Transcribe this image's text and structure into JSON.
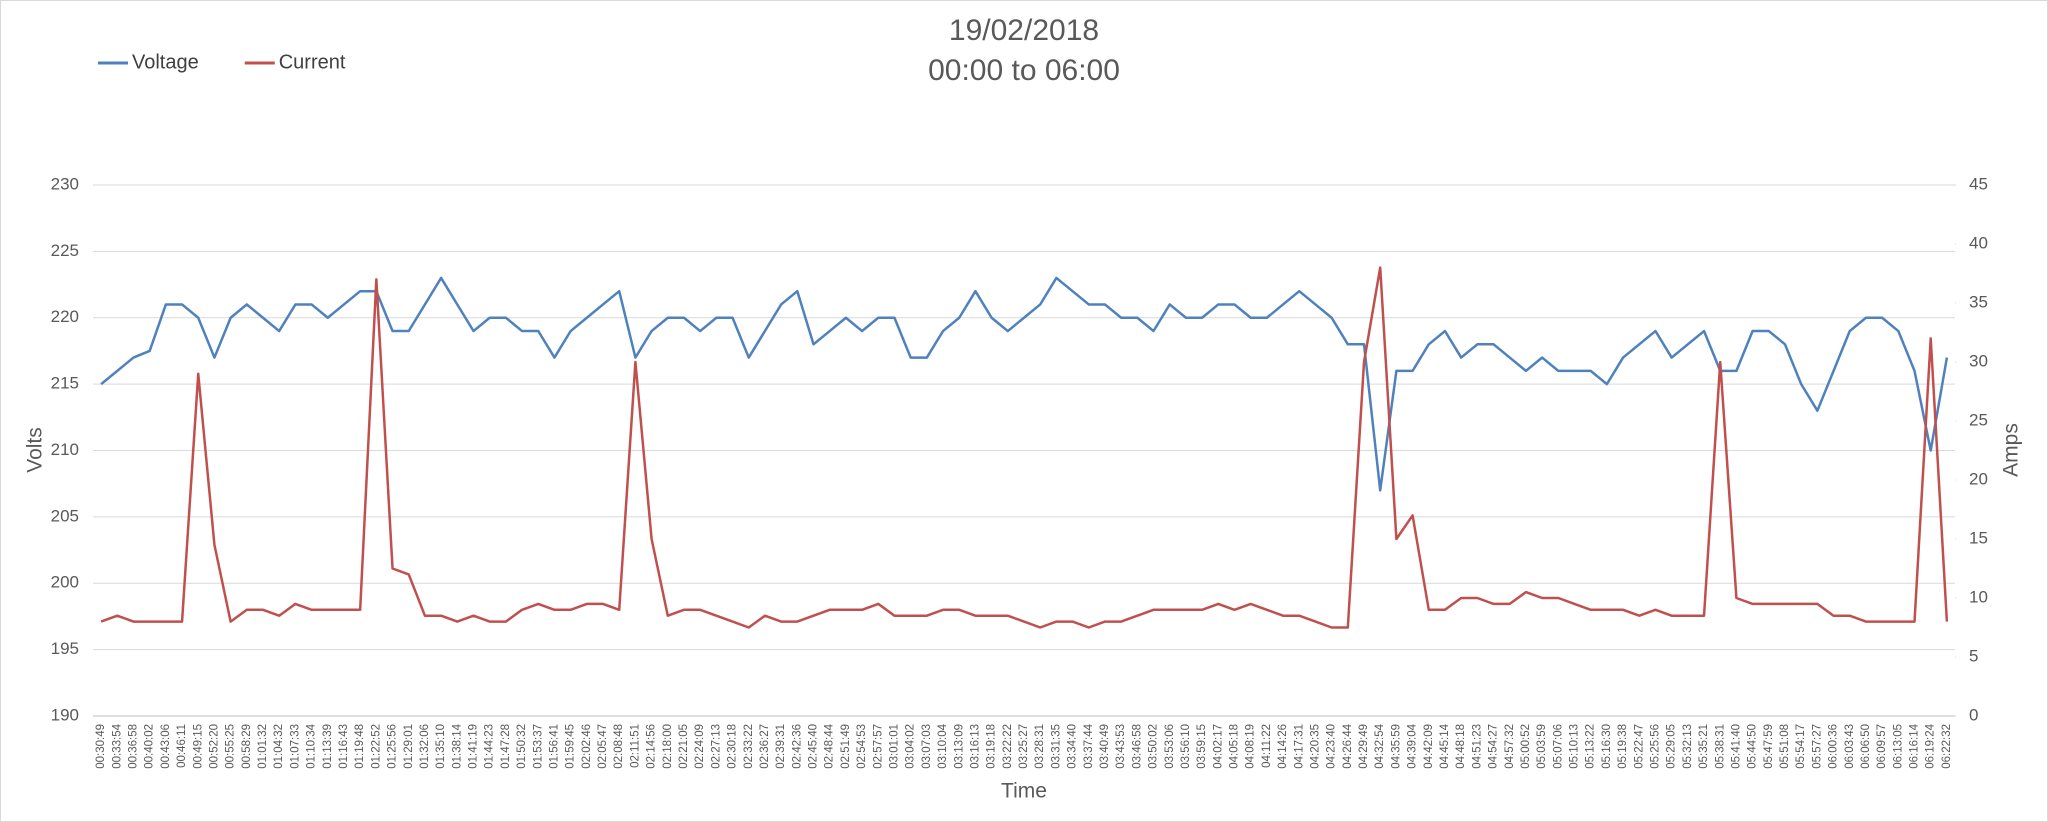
{
  "chart_data": {
    "type": "line",
    "title": "19/02/2018",
    "subtitle": "00:00 to 06:00",
    "xlabel": "Time",
    "ylabel": "Volts",
    "y2label": "Amps",
    "legend": "top-left",
    "grid": true,
    "ylim": [
      190,
      230
    ],
    "yticks": [
      190,
      195,
      200,
      205,
      210,
      215,
      220,
      225,
      230
    ],
    "y2lim": [
      0,
      45
    ],
    "y2ticks": [
      0,
      5,
      10,
      15,
      20,
      25,
      30,
      35,
      40,
      45
    ],
    "categories": [
      "00:30:49",
      "00:33:54",
      "00:36:58",
      "00:40:02",
      "00:43:06",
      "00:46:11",
      "00:49:15",
      "00:52:20",
      "00:55:25",
      "00:58:29",
      "01:01:32",
      "01:04:32",
      "01:07:33",
      "01:10:34",
      "01:13:39",
      "01:16:43",
      "01:19:48",
      "01:22:52",
      "01:25:56",
      "01:29:01",
      "01:32:06",
      "01:35:10",
      "01:38:14",
      "01:41:19",
      "01:44:23",
      "01:47:28",
      "01:50:32",
      "01:53:37",
      "01:56:41",
      "01:59:45",
      "02:02:46",
      "02:05:47",
      "02:08:48",
      "02:11:51",
      "02:14:56",
      "02:18:00",
      "02:21:05",
      "02:24:09",
      "02:27:13",
      "02:30:18",
      "02:33:22",
      "02:36:27",
      "02:39:31",
      "02:42:36",
      "02:45:40",
      "02:48:44",
      "02:51:49",
      "02:54:53",
      "02:57:57",
      "03:01:01",
      "03:04:02",
      "03:07:03",
      "03:10:04",
      "03:13:09",
      "03:16:13",
      "03:19:18",
      "03:22:22",
      "03:25:27",
      "03:28:31",
      "03:31:35",
      "03:34:40",
      "03:37:44",
      "03:40:49",
      "03:43:53",
      "03:46:58",
      "03:50:02",
      "03:53:06",
      "03:56:10",
      "03:59:15",
      "04:02:17",
      "04:05:18",
      "04:08:19",
      "04:11:22",
      "04:14:26",
      "04:17:31",
      "04:20:35",
      "04:23:40",
      "04:26:44",
      "04:29:49",
      "04:32:54",
      "04:35:59",
      "04:39:04",
      "04:42:09",
      "04:45:14",
      "04:48:18",
      "04:51:23",
      "04:54:27",
      "04:57:32",
      "05:00:52",
      "05:03:59",
      "05:07:06",
      "05:10:13",
      "05:13:22",
      "05:16:30",
      "05:19:38",
      "05:22:47",
      "05:25:56",
      "05:29:05",
      "05:32:13",
      "05:35:21",
      "05:38:31",
      "05:41:40",
      "05:44:50",
      "05:47:59",
      "05:51:08",
      "05:54:17",
      "05:57:27",
      "06:00:36",
      "06:03:43",
      "06:06:50",
      "06:09:57",
      "06:13:05",
      "06:16:14",
      "06:19:24",
      "06:22:32"
    ],
    "series": [
      {
        "name": "Voltage",
        "color": "#4f81bd",
        "axis": "y",
        "values": [
          215,
          216,
          217,
          217.5,
          221,
          221,
          220,
          217,
          220,
          221,
          220,
          219,
          221,
          221,
          220,
          221,
          222,
          222,
          219,
          219,
          221,
          223,
          221,
          219,
          220,
          220,
          219,
          219,
          217,
          219,
          220,
          221,
          222,
          217,
          219,
          220,
          220,
          219,
          220,
          220,
          217,
          219,
          221,
          222,
          218,
          219,
          220,
          219,
          220,
          220,
          217,
          217,
          219,
          220,
          222,
          220,
          219,
          220,
          221,
          223,
          222,
          221,
          221,
          220,
          220,
          219,
          221,
          220,
          220,
          221,
          221,
          220,
          220,
          221,
          222,
          221,
          220,
          218,
          218,
          207,
          216,
          216,
          218,
          219,
          217,
          218,
          218,
          217,
          216,
          217,
          216,
          216,
          216,
          215,
          217,
          218,
          219,
          217,
          218,
          219,
          216,
          216,
          219,
          219,
          218,
          215,
          213,
          216,
          219,
          220,
          220,
          219,
          216,
          210,
          217
        ]
      },
      {
        "name": "Current",
        "color": "#c0504d",
        "axis": "y2",
        "values": [
          8,
          8.5,
          8,
          8,
          8,
          8,
          29,
          14.5,
          8,
          9,
          9,
          8.5,
          9.5,
          9,
          9,
          9,
          9,
          37,
          12.5,
          12,
          8.5,
          8.5,
          8,
          8.5,
          8,
          8,
          9,
          9.5,
          9,
          9,
          9.5,
          9.5,
          9,
          30,
          15,
          8.5,
          9,
          9,
          8.5,
          8,
          7.5,
          8.5,
          8,
          8,
          8.5,
          9,
          9,
          9,
          9.5,
          8.5,
          8.5,
          8.5,
          9,
          9,
          8.5,
          8.5,
          8.5,
          8,
          7.5,
          8,
          8,
          7.5,
          8,
          8,
          8.5,
          9,
          9,
          9,
          9,
          9.5,
          9,
          9.5,
          9,
          8.5,
          8.5,
          8,
          7.5,
          7.5,
          30,
          38,
          15,
          17,
          9,
          9,
          10,
          10,
          9.5,
          9.5,
          10.5,
          10,
          10,
          9.5,
          9,
          9,
          9,
          8.5,
          9,
          8.5,
          8.5,
          8.5,
          30,
          10,
          9.5,
          9.5,
          9.5,
          9.5,
          9.5,
          8.5,
          8.5,
          8,
          8,
          8,
          8,
          32,
          8
        ]
      }
    ]
  }
}
